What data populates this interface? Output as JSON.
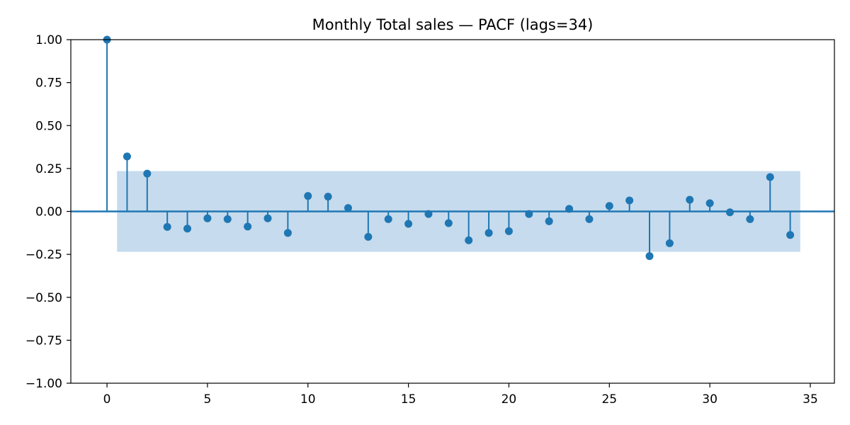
{
  "chart_data": {
    "type": "stem",
    "title": "Monthly Total sales — PACF (lags=34)",
    "xlabel": "",
    "ylabel": "",
    "xlim": [
      -1.8,
      36.2
    ],
    "ylim": [
      -1.0,
      1.0
    ],
    "x_ticks": [
      0,
      5,
      10,
      15,
      20,
      25,
      30,
      35
    ],
    "y_ticks": [
      -1.0,
      -0.75,
      -0.5,
      -0.25,
      0.0,
      0.25,
      0.5,
      0.75,
      1.0
    ],
    "y_tick_labels": [
      "−1.00",
      "−0.75",
      "−0.50",
      "−0.25",
      "0.00",
      "0.25",
      "0.50",
      "0.75",
      "1.00"
    ],
    "confidence_band": {
      "x_from": 0.5,
      "x_to": 34.5,
      "lower": -0.235,
      "upper": 0.235
    },
    "lags": [
      0,
      1,
      2,
      3,
      4,
      5,
      6,
      7,
      8,
      9,
      10,
      11,
      12,
      13,
      14,
      15,
      16,
      17,
      18,
      19,
      20,
      21,
      22,
      23,
      24,
      25,
      26,
      27,
      28,
      29,
      30,
      31,
      32,
      33,
      34
    ],
    "values": [
      1.0,
      0.32,
      0.22,
      -0.09,
      -0.1,
      -0.04,
      -0.045,
      -0.088,
      -0.04,
      -0.125,
      0.09,
      0.086,
      0.02,
      -0.148,
      -0.045,
      -0.072,
      -0.015,
      -0.068,
      -0.168,
      -0.125,
      -0.115,
      -0.015,
      -0.057,
      0.015,
      -0.045,
      0.032,
      0.064,
      -0.26,
      -0.185,
      0.068,
      0.048,
      -0.005,
      -0.045,
      0.2,
      -0.137
    ],
    "grid": false,
    "colors": {
      "stem": "#1f77b4",
      "band": "#c6dbed",
      "axis": "#000000"
    }
  }
}
